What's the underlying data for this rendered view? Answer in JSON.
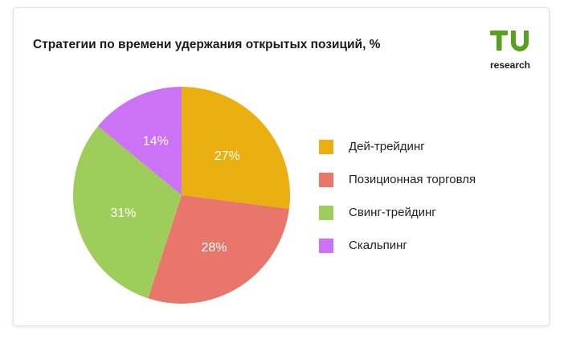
{
  "colors": {
    "brand": "#5aa020"
  },
  "logo": {
    "mark": "TU",
    "text": "research"
  },
  "chart_data": {
    "type": "pie",
    "title": "Стратегии по времени удержания открытых позиций, %",
    "legend_position": "right",
    "categories": [
      "Дей-трейдинг",
      "Позиционная торговля",
      "Свинг-трейдинг",
      "Скальпинг"
    ],
    "values": [
      27,
      28,
      31,
      14
    ],
    "labels": [
      "27%",
      "28%",
      "31%",
      "14%"
    ],
    "colors": [
      "#eab011",
      "#e8766a",
      "#9ecd5b",
      "#cc72f6"
    ]
  }
}
